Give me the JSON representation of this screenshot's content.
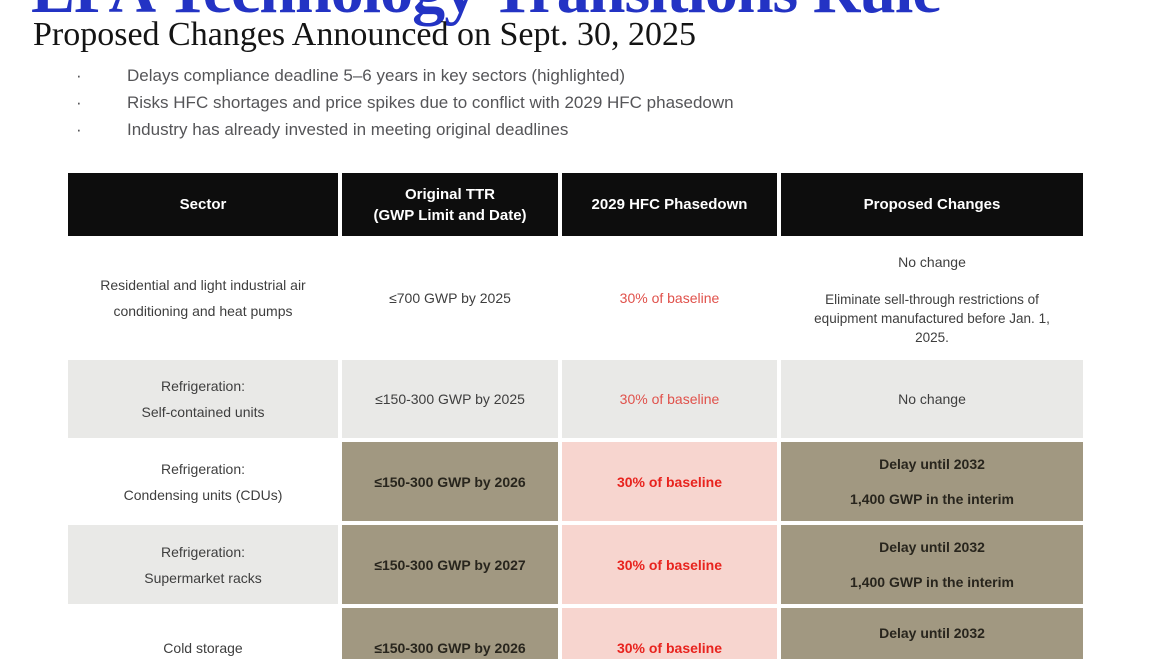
{
  "page": {
    "title": "EPA Technology Transitions Rule",
    "subtitle": "Proposed Changes Announced on Sept. 30, 2025",
    "bullets": [
      "Delays compliance deadline 5–6 years in key sectors (highlighted)",
      "Risks HFC shortages and price spikes due to conflict with 2029 HFC phasedown",
      "Industry has already invested in meeting original deadlines"
    ]
  },
  "colors": {
    "title_blue": "#2333c4",
    "header_bg": "#0d0d0d",
    "row_gray": "#e9e9e7",
    "highlight_tan": "#a19881",
    "highlight_pink": "#f7d5cf",
    "red_text": "#e0514b",
    "red_bold_text": "#e8231e"
  },
  "table": {
    "headers": {
      "sector": "Sector",
      "ttr_line1": "Original TTR",
      "ttr_line2": "(GWP Limit and Date)",
      "phasedown": "2029 HFC Phasedown",
      "proposed": "Proposed Changes"
    },
    "rows": [
      {
        "sector": [
          "Residential and light industrial air",
          "conditioning and heat pumps"
        ],
        "ttr": "≤700 GWP by 2025",
        "phasedown": "30% of baseline",
        "proposed_primary": "No change",
        "proposed_secondary": "Eliminate sell-through restrictions of equipment manufactured before Jan. 1, 2025."
      },
      {
        "sector": [
          "Refrigeration:",
          "Self-contained units"
        ],
        "ttr": "≤150-300 GWP by 2025",
        "phasedown": "30% of baseline",
        "proposed_primary": "No change",
        "proposed_secondary": ""
      },
      {
        "sector": [
          "Refrigeration:",
          "Condensing units (CDUs)"
        ],
        "ttr": "≤150-300 GWP by 2026",
        "phasedown": "30% of baseline",
        "proposed_primary": "Delay until 2032",
        "proposed_secondary": "1,400 GWP in the interim"
      },
      {
        "sector": [
          "Refrigeration:",
          "Supermarket racks"
        ],
        "ttr": "≤150-300 GWP by 2027",
        "phasedown": "30% of baseline",
        "proposed_primary": "Delay until 2032",
        "proposed_secondary": "1,400 GWP in the interim"
      },
      {
        "sector": [
          "Cold storage"
        ],
        "ttr": "≤150-300 GWP by 2026",
        "phasedown": "30% of baseline",
        "proposed_primary": "Delay until 2032",
        "proposed_secondary": ""
      }
    ]
  }
}
